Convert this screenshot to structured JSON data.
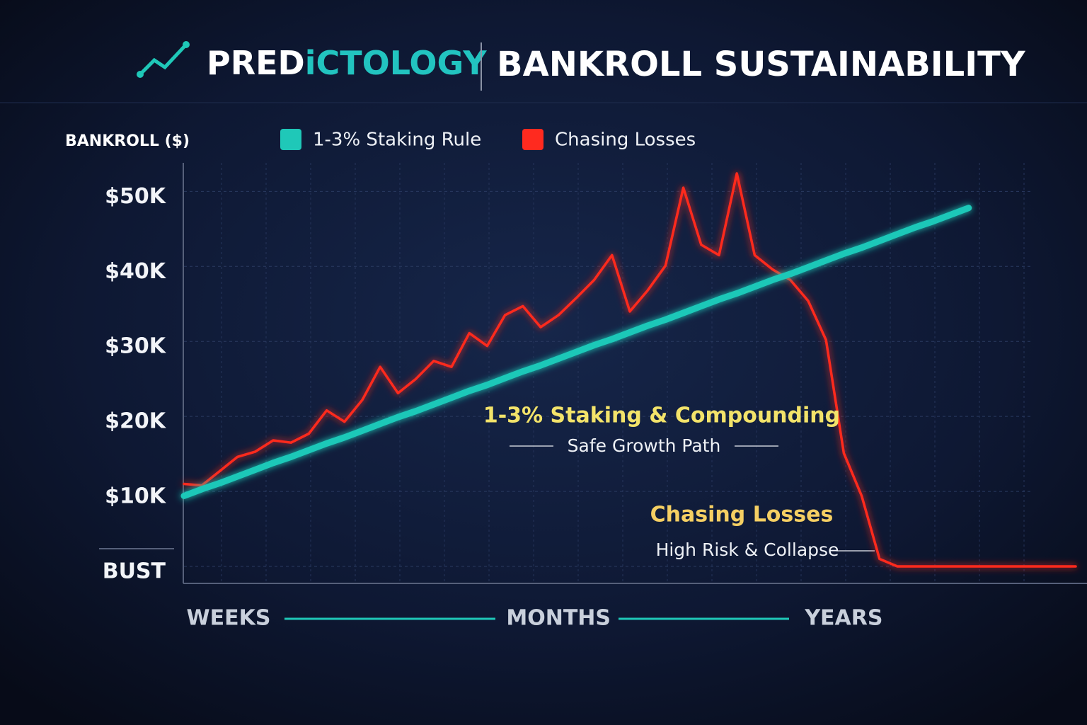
{
  "chart_data": {
    "type": "line",
    "brand": [
      "PRED",
      "iCTOLOGY"
    ],
    "title": "BANKROLL SUSTAINABILITY",
    "y_label": "BANKROLL ($)",
    "annotations": [
      "1-3% Staking & Compounding",
      "Safe Growth Path",
      "Chasing Losses",
      "High Risk & Collapse"
    ],
    "x": [
      0,
      2,
      4,
      6,
      8,
      10,
      12,
      14,
      16,
      18,
      20,
      22,
      24,
      26,
      28,
      30,
      32,
      34,
      36,
      38,
      40,
      42,
      44,
      46,
      48,
      50,
      52,
      54,
      56,
      58,
      60,
      62,
      64,
      66,
      68,
      70,
      72,
      74,
      76,
      78,
      80,
      82,
      84,
      86,
      88,
      90,
      92,
      94,
      96,
      98,
      100
    ],
    "xlim": [
      0,
      100
    ],
    "xticks": [
      {
        "value": 5,
        "label": "WEEKS"
      },
      {
        "value": 42,
        "label": "MONTHS"
      },
      {
        "value": 74,
        "label": "YEARS"
      }
    ],
    "ylim": [
      0,
      54000
    ],
    "yticks": [
      {
        "value": 0,
        "label": "BUST"
      },
      {
        "value": 10000,
        "label": "$10K"
      },
      {
        "value": 20000,
        "label": "$20K"
      },
      {
        "value": 30000,
        "label": "$30K"
      },
      {
        "value": 40000,
        "label": "$40K"
      },
      {
        "value": 50000,
        "label": "$50K"
      }
    ],
    "grid": true,
    "series": [
      {
        "name": "1-3% Staking Rule",
        "color": "#1fc8b8",
        "values": [
          9400,
          10300,
          11100,
          12000,
          12900,
          13800,
          14600,
          15500,
          16400,
          17200,
          18100,
          19000,
          19900,
          20700,
          21600,
          22500,
          23400,
          24200,
          25100,
          26000,
          26800,
          27700,
          28600,
          29500,
          30300,
          31200,
          32100,
          32900,
          33800,
          34700,
          35600,
          36400,
          37300,
          38200,
          39000,
          39900,
          40800,
          41700,
          42500,
          43400,
          44300,
          45200,
          46000,
          46900,
          47800,
          null,
          null,
          null,
          null,
          null,
          null
        ]
      },
      {
        "name": "Chasing Losses",
        "color": "#ff2a1f",
        "values": [
          11000,
          10800,
          12700,
          14600,
          15300,
          16800,
          16500,
          17700,
          20800,
          19300,
          22200,
          26600,
          23100,
          25000,
          27400,
          26600,
          31100,
          29400,
          33500,
          34700,
          31900,
          33500,
          35800,
          38200,
          41500,
          34000,
          36800,
          40100,
          50500,
          42900,
          41500,
          52400,
          41500,
          39600,
          38200,
          35400,
          30200,
          15100,
          9400,
          1000,
          0,
          0,
          0,
          0,
          0,
          0,
          0,
          0,
          0,
          0,
          0
        ]
      }
    ]
  }
}
